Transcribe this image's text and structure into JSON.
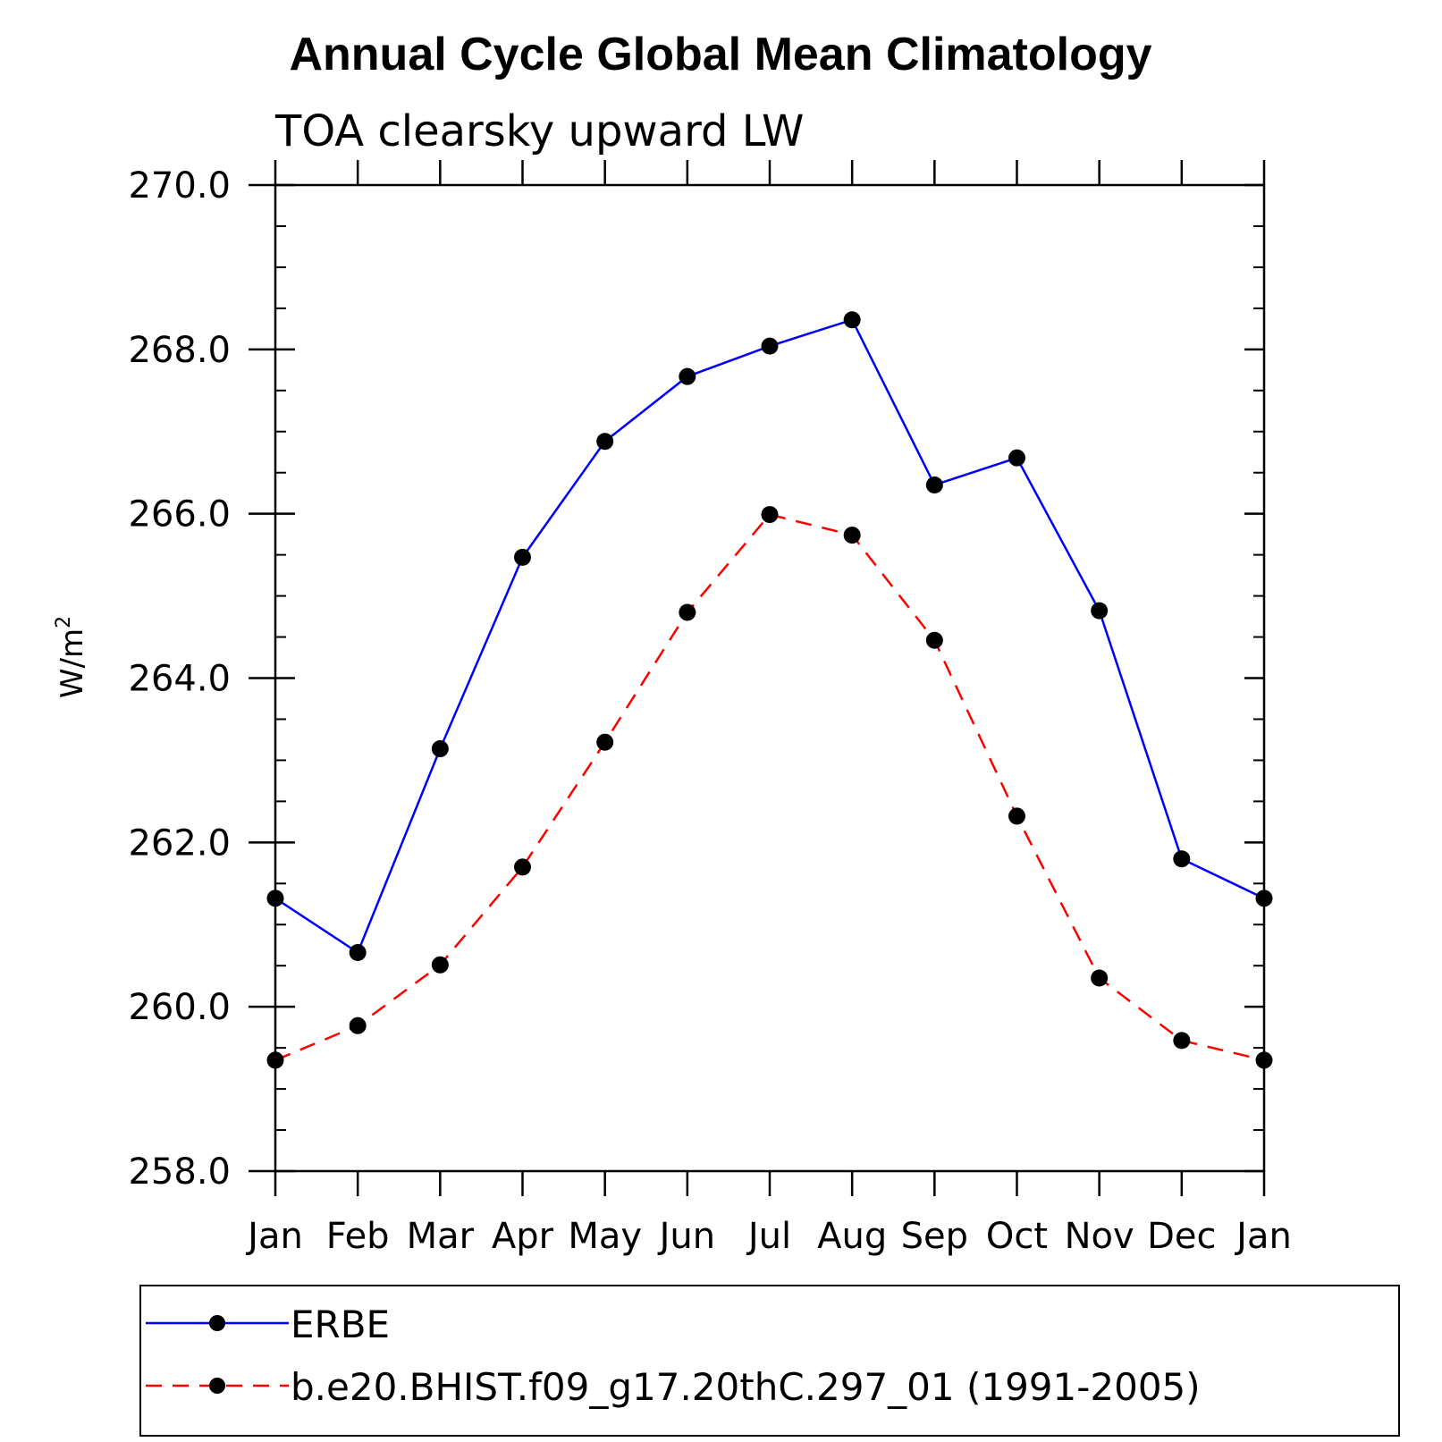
{
  "chart_data": {
    "type": "line",
    "title": "Annual Cycle Global Mean Climatology",
    "subtitle": "TOA clearsky upward LW",
    "ylabel_base": "W/m",
    "ylabel_sup": "2",
    "categories": [
      "Jan",
      "Feb",
      "Mar",
      "Apr",
      "May",
      "Jun",
      "Jul",
      "Aug",
      "Sep",
      "Oct",
      "Nov",
      "Dec",
      "Jan"
    ],
    "ylim": [
      258.0,
      270.0
    ],
    "yticks": [
      "258.0",
      "260.0",
      "262.0",
      "264.0",
      "266.0",
      "268.0",
      "270.0"
    ],
    "series": [
      {
        "name": "ERBE",
        "color": "#0000ff",
        "dash": "solid",
        "values": [
          261.32,
          260.66,
          263.14,
          265.47,
          266.88,
          267.67,
          268.04,
          268.36,
          266.35,
          266.68,
          264.82,
          261.8,
          261.32
        ]
      },
      {
        "name": "b.e20.BHIST.f09_g17.20thC.297_01 (1991-2005)",
        "color": "#ff0000",
        "dash": "dashed",
        "values": [
          259.35,
          259.77,
          260.51,
          261.7,
          263.22,
          264.8,
          265.99,
          265.74,
          264.46,
          262.32,
          260.35,
          259.59,
          259.35
        ]
      }
    ]
  }
}
